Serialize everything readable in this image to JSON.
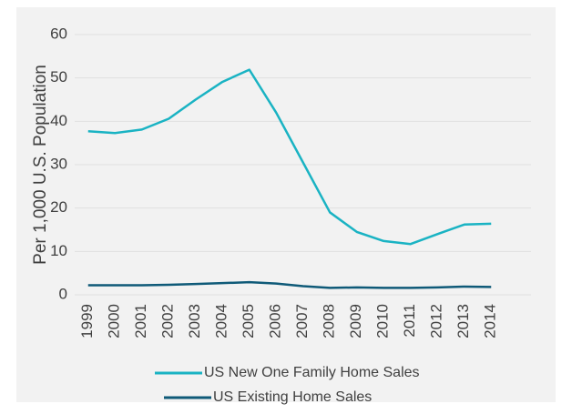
{
  "chart_data": {
    "type": "line",
    "y_axis_label": "Per 1,000 U.S. Population",
    "categories": [
      "1999",
      "2000",
      "2001",
      "2002",
      "2003",
      "2004",
      "2005",
      "2006",
      "2007",
      "2008",
      "2009",
      "2010",
      "2011",
      "2012",
      "2013",
      "2014"
    ],
    "series": [
      {
        "name": "US New One Family Home Sales",
        "color": "#1ab3c3",
        "values": [
          37.7,
          37.3,
          38.1,
          40.6,
          45.0,
          49.1,
          51.9,
          42.0,
          30.5,
          19.0,
          14.5,
          12.4,
          11.7,
          14.0,
          16.2,
          16.4
        ]
      },
      {
        "name": "US Existing Home Sales",
        "color": "#0f5a78",
        "values": [
          2.2,
          2.2,
          2.2,
          2.3,
          2.5,
          2.7,
          2.9,
          2.6,
          2.0,
          1.6,
          1.7,
          1.6,
          1.6,
          1.7,
          1.9,
          1.8
        ]
      }
    ],
    "ylim": [
      0,
      60
    ],
    "yticks": [
      0,
      10,
      20,
      30,
      40,
      50,
      60
    ],
    "grid": true
  }
}
